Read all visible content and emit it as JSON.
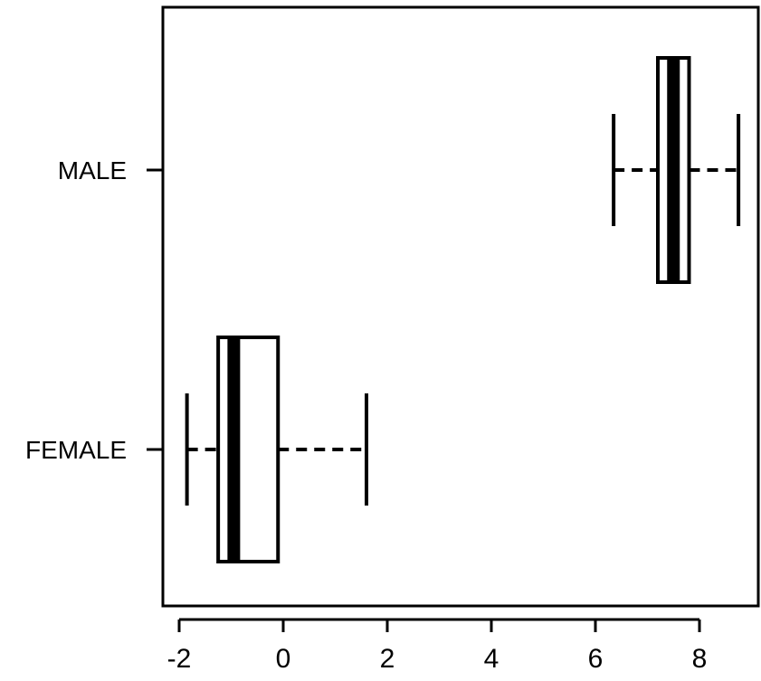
{
  "chart_data": {
    "type": "boxplot",
    "orientation": "horizontal",
    "categories": [
      "FEMALE",
      "MALE"
    ],
    "boxes": [
      {
        "category": "FEMALE",
        "whisker_low": -1.85,
        "q1": -1.25,
        "median": -0.95,
        "q3": -0.1,
        "whisker_high": 1.6
      },
      {
        "category": "MALE",
        "whisker_low": 6.35,
        "q1": 7.2,
        "median": 7.5,
        "q3": 7.8,
        "whisker_high": 8.75
      }
    ],
    "x_ticks": [
      "-2",
      "0",
      "2",
      "4",
      "6",
      "8"
    ],
    "xlim": [
      -2.1,
      9.0
    ],
    "grid": false,
    "legend": "none"
  }
}
